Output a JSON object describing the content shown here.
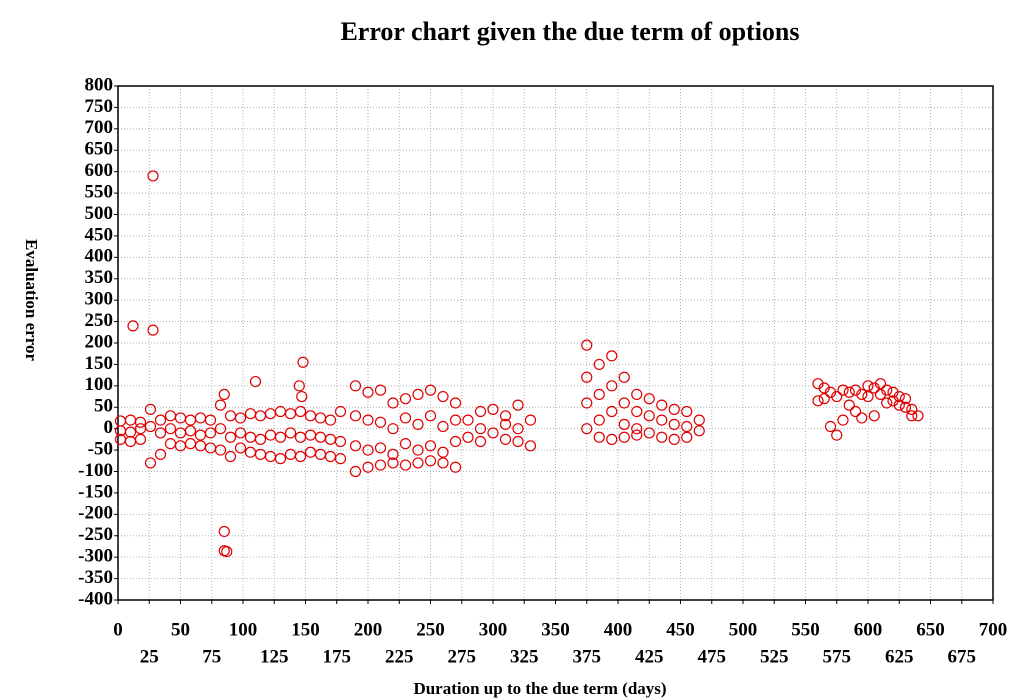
{
  "chart_data": {
    "type": "scatter",
    "title": "Error chart given the due term of options",
    "x_label": "Duration up to the due term (days)",
    "y_label": "Evaluation error",
    "color": "#e00000",
    "grid": true,
    "xlim": [
      0,
      700
    ],
    "ylim": [
      -400,
      800
    ],
    "xticks": [
      0,
      25,
      50,
      75,
      100,
      125,
      150,
      175,
      200,
      225,
      250,
      275,
      300,
      325,
      350,
      375,
      400,
      425,
      450,
      475,
      500,
      525,
      550,
      575,
      600,
      625,
      650,
      675,
      700
    ],
    "yticks": [
      -400,
      -350,
      -300,
      -250,
      -200,
      -150,
      -100,
      -50,
      0,
      50,
      100,
      150,
      200,
      250,
      300,
      350,
      400,
      450,
      500,
      550,
      600,
      650,
      700,
      750,
      800
    ],
    "series": [
      {
        "x": [
          2,
          2,
          2,
          10,
          10,
          10,
          18,
          18,
          18,
          26,
          26,
          26,
          34,
          34,
          34,
          42,
          42,
          42,
          50,
          50,
          50,
          58,
          58,
          58,
          66,
          66,
          66,
          74,
          74,
          74,
          82,
          82,
          82,
          90,
          90,
          90,
          98,
          98,
          98,
          106,
          106,
          106,
          114,
          114,
          114,
          122,
          122,
          122,
          130,
          130,
          130,
          138,
          138,
          138,
          146,
          146,
          146,
          154,
          154,
          154,
          162,
          162,
          162,
          170,
          170,
          170,
          178,
          178,
          178,
          28,
          12,
          28,
          85,
          85,
          87,
          110,
          148,
          145,
          147,
          85,
          190,
          190,
          190,
          190,
          200,
          200,
          200,
          200,
          210,
          210,
          210,
          210,
          220,
          220,
          220,
          220,
          230,
          230,
          230,
          230,
          240,
          240,
          240,
          240,
          250,
          250,
          250,
          250,
          260,
          260,
          260,
          260,
          270,
          270,
          270,
          270,
          280,
          280,
          290,
          290,
          290,
          300,
          300,
          310,
          310,
          310,
          320,
          320,
          320,
          330,
          330,
          375,
          375,
          375,
          375,
          385,
          385,
          385,
          385,
          395,
          395,
          395,
          395,
          405,
          405,
          405,
          405,
          415,
          415,
          415,
          415,
          425,
          425,
          425,
          435,
          435,
          435,
          445,
          445,
          445,
          455,
          455,
          455,
          465,
          465,
          560,
          560,
          565,
          565,
          570,
          570,
          575,
          575,
          580,
          580,
          585,
          585,
          590,
          590,
          595,
          595,
          600,
          600,
          605,
          605,
          610,
          610,
          615,
          615,
          620,
          620,
          625,
          625,
          630,
          630,
          635,
          635,
          640
        ],
        "values": [
          18,
          -5,
          -25,
          20,
          -8,
          -30,
          15,
          0,
          -25,
          45,
          5,
          -80,
          20,
          -10,
          -60,
          30,
          0,
          -35,
          25,
          -10,
          -40,
          20,
          -5,
          -35,
          25,
          -15,
          -40,
          20,
          -10,
          -45,
          55,
          0,
          -50,
          30,
          -20,
          -65,
          25,
          -10,
          -45,
          35,
          -20,
          -55,
          30,
          -25,
          -60,
          35,
          -15,
          -65,
          40,
          -20,
          -70,
          35,
          -10,
          -60,
          40,
          -20,
          -65,
          30,
          -15,
          -55,
          25,
          -20,
          -60,
          20,
          -25,
          -65,
          40,
          -30,
          -70,
          590,
          240,
          230,
          -240,
          -285,
          -287,
          110,
          155,
          100,
          75,
          80,
          100,
          30,
          -40,
          -100,
          85,
          20,
          -50,
          -90,
          90,
          15,
          -45,
          -85,
          60,
          0,
          -60,
          -80,
          70,
          25,
          -35,
          -85,
          80,
          10,
          -50,
          -80,
          90,
          30,
          -40,
          -75,
          75,
          5,
          -55,
          -80,
          60,
          20,
          -30,
          -90,
          20,
          -20,
          40,
          0,
          -30,
          45,
          -10,
          30,
          10,
          -25,
          55,
          0,
          -30,
          20,
          -40,
          195,
          120,
          60,
          0,
          150,
          80,
          20,
          -20,
          170,
          100,
          40,
          -25,
          120,
          60,
          10,
          -20,
          80,
          40,
          0,
          -15,
          70,
          30,
          -10,
          55,
          20,
          -20,
          45,
          10,
          -25,
          40,
          5,
          -20,
          20,
          -5,
          105,
          65,
          95,
          70,
          85,
          5,
          75,
          -15,
          90,
          20,
          85,
          55,
          90,
          40,
          80,
          25,
          100,
          75,
          95,
          30,
          105,
          80,
          90,
          60,
          85,
          65,
          75,
          55,
          70,
          50,
          45,
          30,
          30
        ]
      }
    ]
  }
}
